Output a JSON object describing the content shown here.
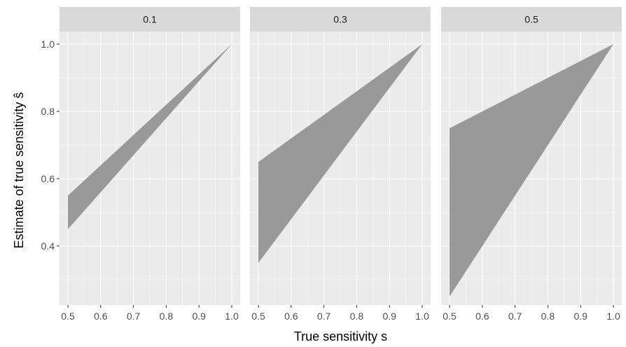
{
  "chart_data": {
    "type": "area",
    "xlabel": "True sensitivity s",
    "ylabel": "Estimate of true sensitivity ŝ",
    "xlim": [
      0.5,
      1.0
    ],
    "ylim": [
      0.25,
      1.0
    ],
    "x_ticks": [
      0.5,
      0.6,
      0.7,
      0.8,
      0.9,
      1.0
    ],
    "x_tick_labels": [
      "0.5",
      "0.6",
      "0.7",
      "0.8",
      "0.9",
      "1.0"
    ],
    "y_ticks": [
      0.4,
      0.6,
      0.8,
      1.0
    ],
    "y_tick_labels": [
      "0.4",
      "0.6",
      "0.8",
      "1.0"
    ],
    "grid": true,
    "fill_color": "#999999",
    "panel_color": "#ebebeb",
    "strip_color": "#d9d9d9",
    "panels": [
      {
        "label": "0.1",
        "x": [
          0.5,
          1.0
        ],
        "ymin": [
          0.45,
          1.0
        ],
        "ymax": [
          0.55,
          1.0
        ]
      },
      {
        "label": "0.3",
        "x": [
          0.5,
          1.0
        ],
        "ymin": [
          0.35,
          1.0
        ],
        "ymax": [
          0.65,
          1.0
        ]
      },
      {
        "label": "0.5",
        "x": [
          0.5,
          1.0
        ],
        "ymin": [
          0.25,
          1.0
        ],
        "ymax": [
          0.75,
          1.0
        ]
      }
    ]
  }
}
